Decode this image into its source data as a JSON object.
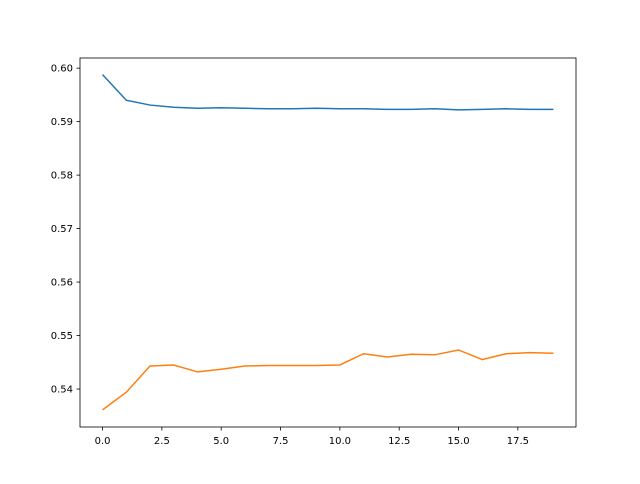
{
  "chart_data": {
    "type": "line",
    "x": [
      0,
      1,
      2,
      3,
      4,
      5,
      6,
      7,
      8,
      9,
      10,
      11,
      12,
      13,
      14,
      15,
      16,
      17,
      18,
      19
    ],
    "series": [
      {
        "color": "#1f77b4",
        "values": [
          0.5988,
          0.594,
          0.5931,
          0.5927,
          0.5925,
          0.5926,
          0.5925,
          0.5924,
          0.5924,
          0.5925,
          0.5924,
          0.5924,
          0.5923,
          0.5923,
          0.5924,
          0.5922,
          0.5923,
          0.5924,
          0.5923,
          0.5923
        ]
      },
      {
        "color": "#ff7f0e",
        "values": [
          0.5361,
          0.5394,
          0.5443,
          0.5445,
          0.5432,
          0.5437,
          0.5443,
          0.5444,
          0.5444,
          0.5444,
          0.5445,
          0.5466,
          0.546,
          0.5465,
          0.5464,
          0.5473,
          0.5455,
          0.5466,
          0.5468,
          0.5467
        ]
      }
    ],
    "xlim": [
      -0.95,
      19.95
    ],
    "xticks": [
      {
        "value": 0,
        "label": "0.0"
      },
      2.5,
      {
        "value": 5,
        "label": "5.0"
      },
      7.5,
      {
        "value": 10,
        "label": "10.0"
      },
      12.5,
      {
        "value": 15,
        "label": "15.0"
      },
      17.5
    ],
    "ylim": [
      0.5329,
      0.6019
    ],
    "yticks": [
      0.54,
      0.55,
      0.56,
      0.57,
      0.58,
      0.59,
      {
        "value": 0.6,
        "label": "0.60"
      }
    ],
    "grid": false
  }
}
